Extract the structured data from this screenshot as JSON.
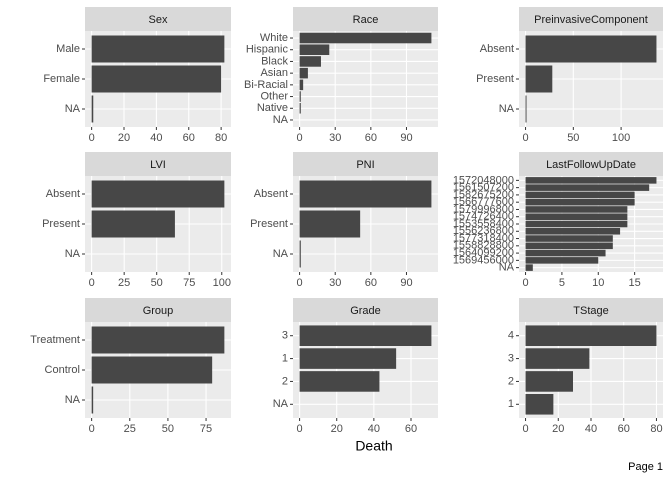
{
  "chart_data": [
    {
      "type": "bar",
      "title": "Sex",
      "categories": [
        "Male",
        "Female",
        "NA"
      ],
      "values": [
        82,
        80,
        1
      ],
      "color": "#474747",
      "xlim": [
        -4.1,
        86.1
      ],
      "xticks": [
        0,
        20,
        40,
        60,
        80
      ],
      "grid": true
    },
    {
      "type": "bar",
      "title": "Race",
      "categories": [
        "White",
        "Hispanic",
        "Black",
        "Asian",
        "Bi-Racial",
        "Other",
        "Native",
        "NA"
      ],
      "values": [
        111,
        25,
        18,
        7,
        3,
        1,
        1,
        0
      ],
      "color": "#474747",
      "xlim": [
        -5.55,
        116.55
      ],
      "xticks": [
        0,
        30,
        60,
        90
      ],
      "grid": true
    },
    {
      "type": "bar",
      "title": "PreinvasiveComponent",
      "categories": [
        "Absent",
        "Present",
        "NA"
      ],
      "values": [
        137,
        28,
        1
      ],
      "color": "#474747",
      "xlim": [
        -6.85,
        143.85
      ],
      "xticks": [
        0,
        50,
        100
      ],
      "grid": true
    },
    {
      "type": "bar",
      "title": "LVI",
      "categories": [
        "Absent",
        "Present",
        "NA"
      ],
      "values": [
        102,
        64,
        0
      ],
      "color": "#474747",
      "xlim": [
        -5.1,
        107.1
      ],
      "xticks": [
        0,
        25,
        50,
        75,
        100
      ],
      "grid": true
    },
    {
      "type": "bar",
      "title": "PNI",
      "categories": [
        "Absent",
        "Present",
        "NA"
      ],
      "values": [
        111,
        51,
        1
      ],
      "color": "#474747",
      "xlim": [
        -5.55,
        116.55
      ],
      "xticks": [
        0,
        30,
        60,
        90
      ],
      "grid": true
    },
    {
      "type": "bar",
      "title": "LastFollowUpDate",
      "categories": [
        "1572048000",
        "1561507200",
        "1582675200",
        "1566777600",
        "1579996800",
        "1574726400",
        "1553558400",
        "1556236800",
        "1577318400",
        "1558828800",
        "1564099200",
        "1569456000",
        "NA"
      ],
      "values": [
        18,
        17,
        15,
        15,
        14,
        14,
        14,
        13,
        12,
        12,
        11,
        10,
        1
      ],
      "color": "#474747",
      "xlim": [
        -0.9,
        18.9
      ],
      "xticks": [
        0,
        5,
        10,
        15
      ],
      "grid": true
    },
    {
      "type": "bar",
      "title": "Group",
      "categories": [
        "Treatment",
        "Control",
        "NA"
      ],
      "values": [
        87,
        79,
        1
      ],
      "color": "#474747",
      "xlim": [
        -4.35,
        91.35
      ],
      "xticks": [
        0,
        25,
        50,
        75
      ],
      "grid": true
    },
    {
      "type": "bar",
      "title": "Grade",
      "categories": [
        "3",
        "1",
        "2",
        "NA"
      ],
      "values": [
        71,
        52,
        43,
        0
      ],
      "color": "#474747",
      "xlim": [
        -3.55,
        74.55
      ],
      "xticks": [
        0,
        20,
        40,
        60
      ],
      "grid": true
    },
    {
      "type": "bar",
      "title": "TStage",
      "categories": [
        "4",
        "3",
        "2",
        "1"
      ],
      "values": [
        80,
        39,
        29,
        17
      ],
      "color": "#474747",
      "xlim": [
        -4,
        84
      ],
      "xticks": [
        0,
        20,
        40,
        60,
        80
      ],
      "grid": true
    }
  ],
  "x_label": "Death",
  "footer": "Page 1"
}
